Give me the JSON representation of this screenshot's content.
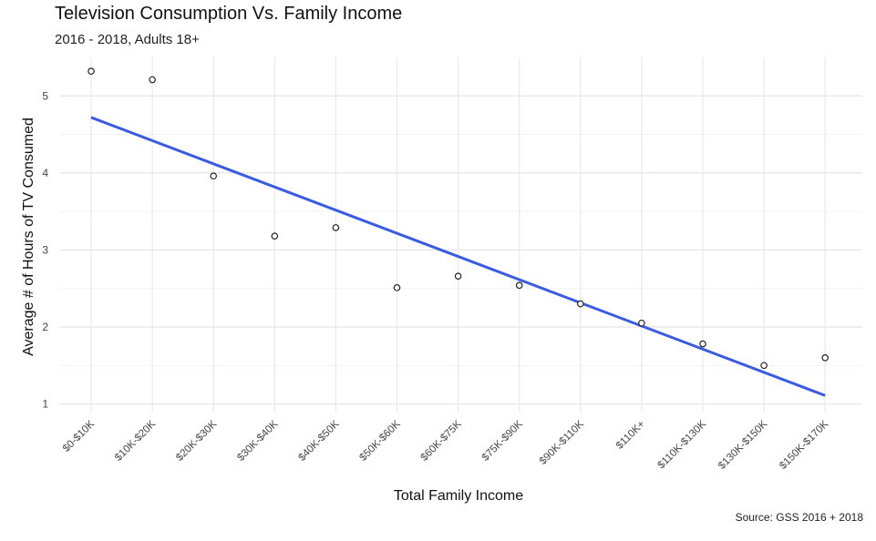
{
  "chart_data": {
    "type": "scatter",
    "title": "Television Consumption Vs. Family Income",
    "subtitle": "2016 - 2018, Adults 18+",
    "xlabel": "Total Family Income",
    "ylabel": "Average # of Hours of TV Consumed",
    "caption": "Source: GSS 2016 + 2018",
    "categories": [
      "$0-$10K",
      "$10K-$20K",
      "$20K-$30K",
      "$30K-$40K",
      "$40K-$50K",
      "$50K-$60K",
      "$60K-$75K",
      "$75K-$90K",
      "$90K-$110K",
      "$110K+",
      "$110K-$130K",
      "$130K-$150K",
      "$150K-$170K"
    ],
    "values": [
      5.32,
      5.21,
      3.96,
      3.18,
      3.29,
      2.51,
      2.66,
      2.54,
      2.3,
      2.05,
      1.78,
      1.5,
      1.6
    ],
    "trend_line": {
      "start": 4.72,
      "end": 1.11,
      "color": "#3a5be0"
    },
    "point_color": "#222222",
    "ylim": [
      0.9,
      5.5
    ],
    "yticks": [
      1,
      2,
      3,
      4,
      5
    ],
    "grid": true,
    "legend": "none"
  }
}
